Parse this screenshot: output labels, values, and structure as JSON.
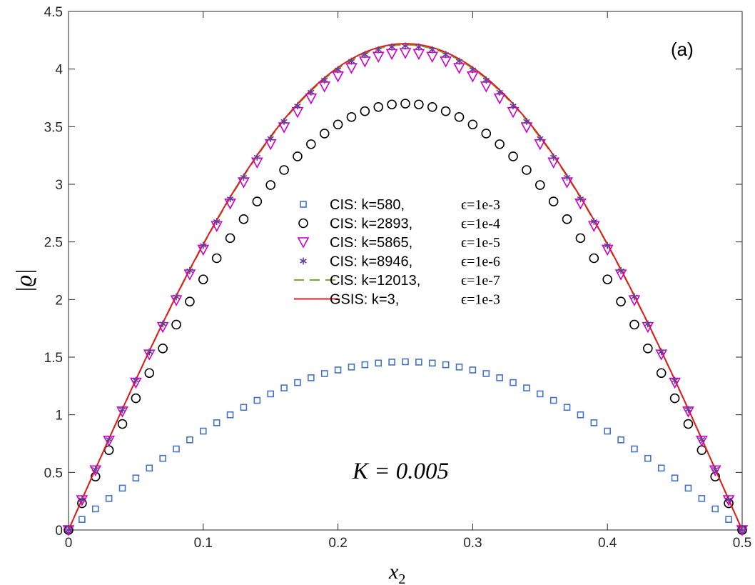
{
  "chart_data": {
    "type": "scatter",
    "panel_label": "(a)",
    "annotation": "K = 0.005",
    "xlabel": "x2",
    "ylabel": "|ϱ|",
    "xlim": [
      0,
      0.5
    ],
    "ylim": [
      0,
      4.5
    ],
    "xticks": [
      "0",
      "0.1",
      "0.2",
      "0.3",
      "0.4",
      "0.5"
    ],
    "yticks": [
      "0",
      "0.5",
      "1",
      "1.5",
      "2",
      "2.5",
      "3",
      "3.5",
      "4",
      "4.5"
    ],
    "grid": false,
    "legend_position": "center",
    "x_samples": [
      0,
      0.01,
      0.02,
      0.03,
      0.04,
      0.05,
      0.06,
      0.07,
      0.08,
      0.09,
      0.1,
      0.11,
      0.12,
      0.13,
      0.14,
      0.15,
      0.16,
      0.17,
      0.18,
      0.19,
      0.2,
      0.21,
      0.22,
      0.23,
      0.24,
      0.25,
      0.26,
      0.27,
      0.28,
      0.29,
      0.3,
      0.31,
      0.32,
      0.33,
      0.34,
      0.35,
      0.36,
      0.37,
      0.38,
      0.39,
      0.4,
      0.41,
      0.42,
      0.43,
      0.44,
      0.45,
      0.46,
      0.47,
      0.48,
      0.49,
      0.5
    ],
    "series": [
      {
        "label_method": "CIS: k=580,",
        "label_eps": "ϵ=1e-3",
        "marker": "square",
        "color": "#4472c4",
        "peak": 1.46,
        "end_offset": 0.09
      },
      {
        "label_method": "CIS: k=2893,",
        "label_eps": "ϵ=1e-4",
        "marker": "circle",
        "color": "#000000",
        "peak": 3.7,
        "end_offset": 0.23
      },
      {
        "label_method": "CIS: k=5865,",
        "label_eps": "ϵ=1e-5",
        "marker": "triangle-down",
        "color": "#cc00cc",
        "peak": 4.14,
        "end_offset": 0.26
      },
      {
        "label_method": "CIS: k=8946,",
        "label_eps": "ϵ=1e-6",
        "marker": "asterisk",
        "color": "#6a3d9a",
        "peak": 4.2,
        "end_offset": 0.26
      },
      {
        "label_method": "CIS: k=12013,",
        "label_eps": "ϵ=1e-7",
        "marker": "dashed-line",
        "color": "#77ac30",
        "peak": 4.21,
        "end_offset": 0.26
      },
      {
        "label_method": "GSIS: k=3,",
        "label_eps": "ϵ=1e-3",
        "marker": "solid-line",
        "color": "#e31a1c",
        "peak": 4.22,
        "end_offset": 0.26
      }
    ]
  }
}
